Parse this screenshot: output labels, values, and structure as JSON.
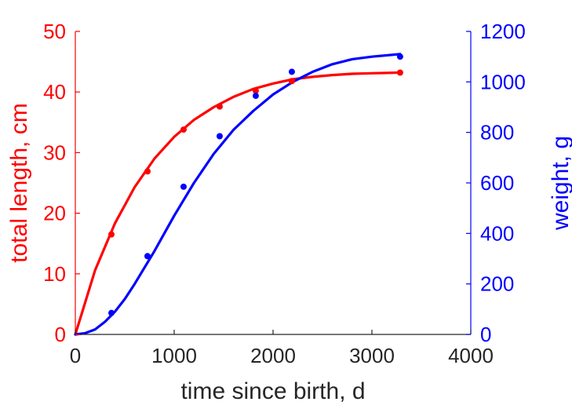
{
  "chart_data": {
    "type": "line",
    "title": "",
    "xlabel": "time since birth, d",
    "ylabel_left": "total length, cm",
    "ylabel_right": "weight, g",
    "xlim": [
      0,
      4000
    ],
    "ylim_left": [
      0,
      50
    ],
    "ylim_right": [
      0,
      1200
    ],
    "xticks": [
      "0",
      "1000",
      "2000",
      "3000",
      "4000"
    ],
    "yticks_left": [
      "0",
      "10",
      "20",
      "30",
      "40",
      "50"
    ],
    "yticks_right": [
      "0",
      "200",
      "400",
      "600",
      "800",
      "1000",
      "1200"
    ],
    "grid": false,
    "colors": {
      "length": "#ff0000",
      "weight": "#0000ff",
      "axis_text": "#262626"
    },
    "series": [
      {
        "axis": "left",
        "color": "#ff0000",
        "points": {
          "x": [
            365,
            730,
            1095,
            1460,
            1825,
            2190,
            3285
          ],
          "y": [
            16.5,
            26.9,
            33.8,
            37.6,
            40.2,
            41.8,
            43.2
          ]
        },
        "fit": {
          "x": [
            0,
            200,
            400,
            600,
            800,
            1000,
            1200,
            1400,
            1600,
            1800,
            2000,
            2200,
            2400,
            2600,
            2800,
            3000,
            3285
          ],
          "y": [
            0,
            10.6,
            18.3,
            24.3,
            29.0,
            32.6,
            35.4,
            37.5,
            39.2,
            40.5,
            41.4,
            42.1,
            42.5,
            42.8,
            43.0,
            43.1,
            43.2
          ]
        }
      },
      {
        "axis": "right",
        "color": "#0000ff",
        "points": {
          "x": [
            365,
            730,
            1095,
            1460,
            1825,
            2190,
            3285
          ],
          "y": [
            85,
            310,
            585,
            785,
            945,
            1040,
            1100
          ]
        },
        "fit": {
          "x": [
            0,
            100,
            200,
            300,
            400,
            500,
            600,
            700,
            800,
            900,
            1000,
            1200,
            1400,
            1600,
            1800,
            2000,
            2200,
            2400,
            2600,
            2800,
            3000,
            3285
          ],
          "y": [
            0,
            5,
            20,
            50,
            90,
            140,
            200,
            265,
            330,
            400,
            470,
            600,
            715,
            810,
            885,
            950,
            1000,
            1040,
            1070,
            1090,
            1100,
            1110
          ]
        }
      }
    ]
  }
}
